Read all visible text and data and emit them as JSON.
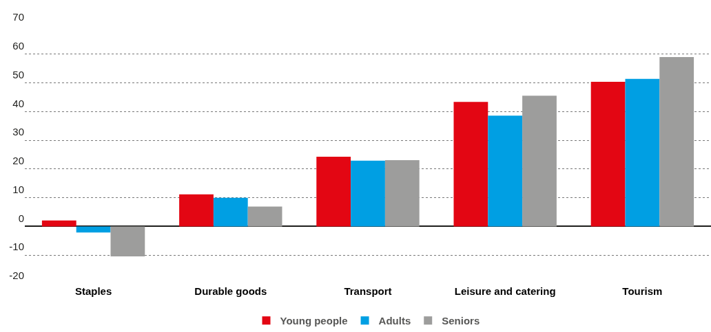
{
  "chart_data": {
    "type": "bar",
    "categories": [
      "Staples",
      "Durable goods",
      "Transport",
      "Leisure and catering",
      "Tourism"
    ],
    "series": [
      {
        "name": "Young people",
        "color": "#e30613",
        "values": [
          2.1,
          11.2,
          24.3,
          43.4,
          50.4
        ]
      },
      {
        "name": "Adults",
        "color": "#009fe3",
        "values": [
          -2.1,
          10.0,
          22.9,
          38.6,
          51.4
        ]
      },
      {
        "name": "Seniors",
        "color": "#9d9d9c",
        "values": [
          -10.4,
          6.9,
          23.1,
          45.5,
          59.0
        ]
      }
    ],
    "ylim": [
      -20,
      70
    ],
    "yticks": [
      -20,
      -10,
      0,
      10,
      20,
      30,
      40,
      50,
      60,
      70
    ],
    "grid": "y",
    "legend": "bottom"
  }
}
